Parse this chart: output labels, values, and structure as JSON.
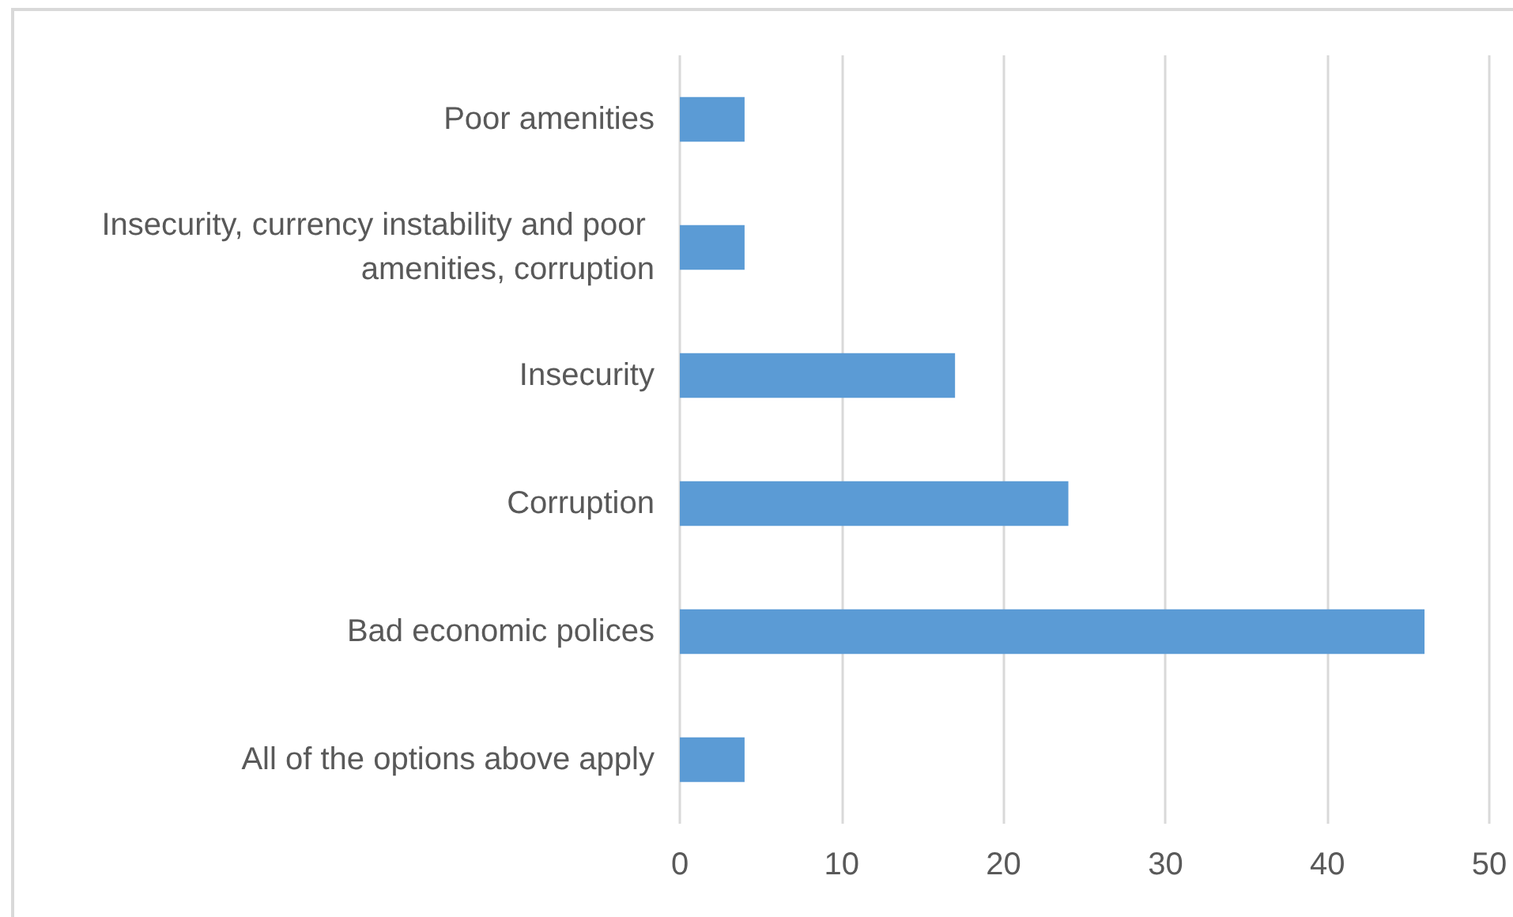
{
  "chart_data": {
    "type": "bar",
    "orientation": "horizontal",
    "categories": [
      "Poor amenities",
      "Insecurity, currency instability and poor amenities, corruption",
      "Insecurity",
      "Corruption",
      "Bad economic polices",
      "All of the options above apply"
    ],
    "values": [
      4,
      4,
      17,
      24,
      46,
      4
    ],
    "color": "#5b9bd5",
    "xlim": [
      0,
      50
    ],
    "xticks": [
      0,
      10,
      20,
      30,
      40,
      50
    ],
    "grid": "x"
  }
}
